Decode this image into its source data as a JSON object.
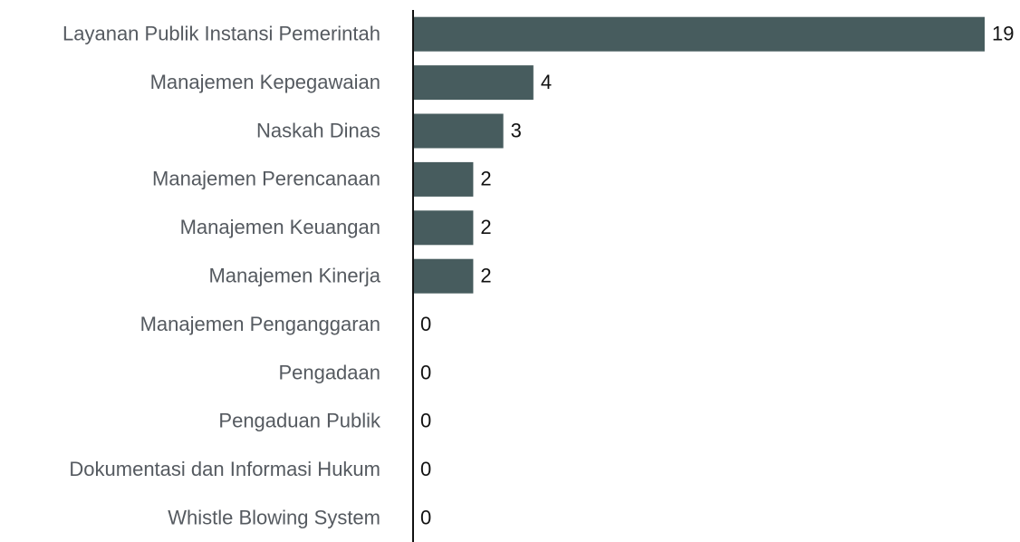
{
  "chart_data": {
    "type": "bar",
    "orientation": "horizontal",
    "categories": [
      "Layanan Publik Instansi Pemerintah",
      "Manajemen Kepegawaian",
      "Naskah Dinas",
      "Manajemen Perencanaan",
      "Manajemen Keuangan",
      "Manajemen Kinerja",
      "Manajemen Penganggaran",
      "Pengadaan",
      "Pengaduan Publik",
      "Dokumentasi dan Informasi Hukum",
      "Whistle Blowing System"
    ],
    "values": [
      19,
      4,
      3,
      2,
      2,
      2,
      0,
      0,
      0,
      0,
      0
    ],
    "color": "#475c5e"
  }
}
